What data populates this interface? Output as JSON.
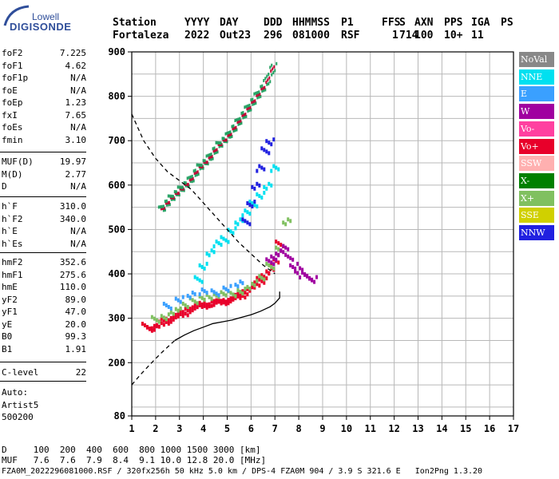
{
  "logo": {
    "line1": "Lowell",
    "line2": "DIGISONDE"
  },
  "header": {
    "labels": [
      "Station",
      "YYYY",
      "DAY",
      "DDD",
      "HHMMSS",
      "P1",
      "FFS",
      "S",
      "AXN",
      "PPS",
      "IGA",
      "PS"
    ],
    "values": [
      "Fortaleza",
      "2022",
      "Out23",
      "296",
      "081000",
      "RSF",
      "1",
      "714",
      "100",
      "10+",
      "11"
    ]
  },
  "params": {
    "group1": [
      {
        "name": "foF2",
        "value": "7.225"
      },
      {
        "name": "foF1",
        "value": "4.62"
      },
      {
        "name": "foF1p",
        "value": "N/A"
      },
      {
        "name": "foE",
        "value": "N/A"
      },
      {
        "name": "foEp",
        "value": "1.23"
      },
      {
        "name": "fxI",
        "value": "7.65"
      },
      {
        "name": "foEs",
        "value": "N/A"
      },
      {
        "name": "fmin",
        "value": "3.10"
      }
    ],
    "group2": [
      {
        "name": "MUF(D)",
        "value": "19.97"
      },
      {
        "name": "M(D)",
        "value": "2.77"
      },
      {
        "name": "D",
        "value": "N/A"
      }
    ],
    "group3": [
      {
        "name": "h`F",
        "value": "310.0"
      },
      {
        "name": "h`F2",
        "value": "340.0"
      },
      {
        "name": "h`E",
        "value": "N/A"
      },
      {
        "name": "h`Es",
        "value": "N/A"
      }
    ],
    "group4": [
      {
        "name": "hmF2",
        "value": "352.6"
      },
      {
        "name": "hmF1",
        "value": "275.6"
      },
      {
        "name": "hmE",
        "value": "110.0"
      },
      {
        "name": "yF2",
        "value": "89.0"
      },
      {
        "name": "yF1",
        "value": "47.0"
      },
      {
        "name": "yE",
        "value": "20.0"
      },
      {
        "name": "B0",
        "value": "99.3"
      },
      {
        "name": "B1",
        "value": "1.91"
      }
    ],
    "group5": [
      {
        "name": "C-level",
        "value": "22"
      }
    ],
    "auto": [
      "Auto:",
      "Artist5",
      "500200"
    ]
  },
  "legend": [
    {
      "label": "NoVal",
      "color": "#888888"
    },
    {
      "label": "NNE",
      "color": "#00e0f0"
    },
    {
      "label": "E",
      "color": "#3aa0ff"
    },
    {
      "label": "W",
      "color": "#a000a0"
    },
    {
      "label": "Vo-",
      "color": "#ff40a0"
    },
    {
      "label": "Vo+",
      "color": "#e8002a"
    },
    {
      "label": "SSW",
      "color": "#ffb0b0"
    },
    {
      "label": "X-",
      "color": "#008000"
    },
    {
      "label": "X+",
      "color": "#80c060"
    },
    {
      "label": "SSE",
      "color": "#d0d000"
    },
    {
      "label": "NNW",
      "color": "#2020e0"
    }
  ],
  "footer": {
    "line1": "D     100  200  400  600  800 1000 1500 3000 [km]",
    "line2": "MUF   7.6  7.6  7.9  8.4  9.1 10.0 12.8 20.0 [MHz]",
    "line3": "FZA0M_2022296081000.RSF / 320fx256h 50 kHz 5.0 km / DPS-4 FZA0M 904 / 3.9 S 321.6 E   Ion2Png 1.3.20"
  },
  "chart_data": {
    "type": "scatter",
    "xlim": [
      1,
      17
    ],
    "ylim": [
      80,
      900
    ],
    "x_ticks": [
      1,
      2,
      3,
      4,
      5,
      6,
      7,
      8,
      9,
      10,
      11,
      12,
      13,
      14,
      15,
      16,
      17
    ],
    "y_ticks": [
      80,
      200,
      300,
      400,
      500,
      600,
      700,
      800,
      900
    ],
    "grid": true,
    "series": [
      {
        "name": "Vo+",
        "color": "#e8002a",
        "x": [
          1.6,
          1.8,
          2.0,
          2.2,
          2.4,
          2.6,
          2.8,
          3.0,
          3.2,
          3.4,
          3.6,
          3.8,
          4.0,
          4.2,
          4.4,
          4.6,
          4.8,
          5.0,
          5.2,
          5.4,
          5.6,
          5.8,
          6.0,
          6.2,
          6.4,
          6.6,
          6.8,
          7.0,
          7.2
        ],
        "y": [
          285,
          280,
          282,
          290,
          296,
          300,
          305,
          310,
          315,
          322,
          326,
          330,
          332,
          335,
          336,
          338,
          340,
          342,
          346,
          350,
          355,
          362,
          370,
          378,
          388,
          398,
          410,
          430,
          470
        ]
      },
      {
        "name": "X+",
        "color": "#80c060",
        "x": [
          2.0,
          2.4,
          2.8,
          3.2,
          3.6,
          4.0,
          4.4,
          4.8,
          5.2,
          5.6,
          6.0,
          6.4,
          6.8,
          7.2,
          7.5
        ],
        "y": [
          300,
          306,
          318,
          330,
          342,
          350,
          352,
          356,
          358,
          364,
          375,
          392,
          420,
          460,
          520
        ]
      },
      {
        "name": "W",
        "color": "#a000a0",
        "x": [
          6.8,
          7.0,
          7.2,
          7.4,
          7.6,
          7.8,
          8.0,
          8.2,
          8.4,
          8.6
        ],
        "y": [
          430,
          440,
          450,
          460,
          440,
          420,
          410,
          400,
          395,
          390
        ]
      },
      {
        "name": "NNE",
        "color": "#00e0f0",
        "x": [
          3.8,
          4.0,
          4.3,
          4.6,
          4.9,
          5.2,
          5.5,
          5.8,
          6.1,
          6.4,
          6.7,
          7.0
        ],
        "y": [
          390,
          420,
          450,
          470,
          480,
          500,
          520,
          540,
          560,
          580,
          600,
          640
        ]
      },
      {
        "name": "E",
        "color": "#3aa0ff",
        "x": [
          2.5,
          3.0,
          3.5,
          4.0,
          4.5,
          5.0,
          5.5
        ],
        "y": [
          330,
          345,
          355,
          362,
          360,
          370,
          380
        ]
      },
      {
        "name": "NNW",
        "color": "#2020e0",
        "x": [
          5.8,
          6.0,
          6.2,
          6.4,
          6.6,
          6.8
        ],
        "y": [
          520,
          560,
          600,
          640,
          680,
          700
        ]
      }
    ],
    "lines": [
      {
        "name": "profile",
        "style": "solid",
        "x": [
          2.8,
          3.2,
          3.6,
          4.0,
          4.4,
          4.8,
          5.2,
          5.6,
          6.0,
          6.4,
          6.8,
          7.0,
          7.2,
          7.2
        ],
        "y": [
          250,
          262,
          272,
          280,
          288,
          292,
          296,
          302,
          308,
          316,
          326,
          334,
          346,
          360
        ]
      },
      {
        "name": "profile-extrap",
        "style": "dashed",
        "x": [
          1.0,
          1.4,
          1.8,
          2.2,
          2.6,
          2.8
        ],
        "y": [
          150,
          175,
          198,
          220,
          240,
          250
        ]
      },
      {
        "name": "muf",
        "style": "dashed",
        "x": [
          1.0,
          1.5,
          2.0,
          2.5,
          3.0,
          3.5,
          4.0,
          4.5,
          5.0,
          5.5,
          6.0,
          6.5,
          7.0
        ],
        "y": [
          760,
          700,
          660,
          630,
          610,
          590,
          560,
          530,
          500,
          470,
          445,
          420,
          400
        ]
      }
    ],
    "upper_trace": {
      "name": "F2 multiple",
      "color": "#c00030",
      "x": [
        2.2,
        2.6,
        3.0,
        3.4,
        3.8,
        4.2,
        4.6,
        5.0,
        5.4,
        5.8,
        6.2,
        6.6,
        7.0
      ],
      "y": [
        545,
        570,
        590,
        610,
        640,
        660,
        690,
        710,
        740,
        770,
        800,
        830,
        880
      ]
    }
  }
}
